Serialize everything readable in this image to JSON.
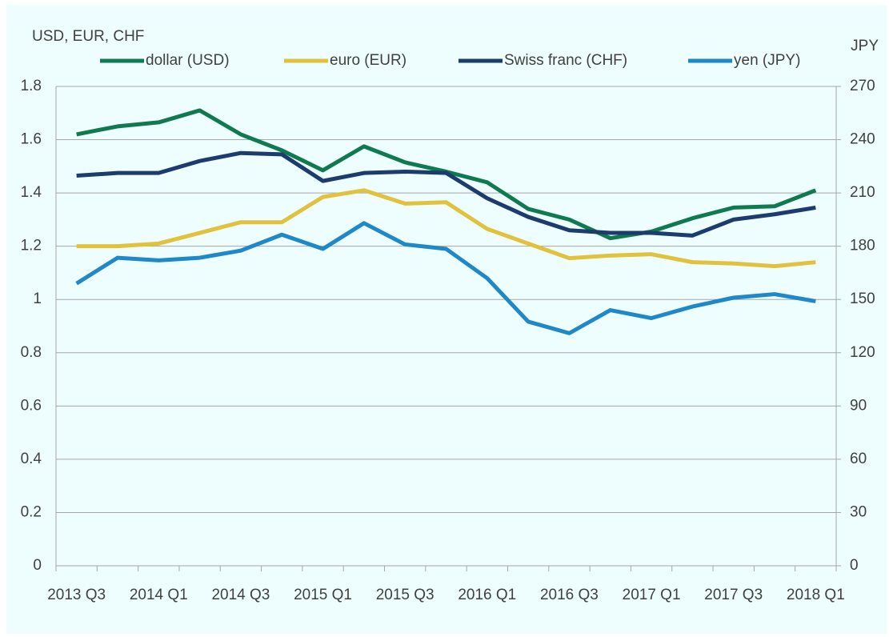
{
  "chart_data": {
    "type": "line",
    "y_axis_label": "USD, EUR, CHF",
    "y2_axis_label": "JPY",
    "categories": [
      "2013 Q3",
      null,
      "2014 Q1",
      null,
      "2014 Q3",
      null,
      "2015 Q1",
      null,
      "2015 Q3",
      null,
      "2016 Q1",
      null,
      "2016 Q3",
      null,
      "2017 Q1",
      null,
      "2017 Q3",
      null,
      "2018 Q1"
    ],
    "series": [
      {
        "name": "dollar (USD)",
        "color": "#0f7a50",
        "values": [
          1.62,
          1.65,
          1.665,
          1.71,
          1.62,
          1.56,
          1.485,
          1.575,
          1.515,
          1.48,
          1.44,
          1.34,
          1.3,
          1.23,
          1.255,
          1.305,
          1.345,
          1.35,
          1.41
        ]
      },
      {
        "name": "euro (EUR)",
        "color": "#e0c23c",
        "values": [
          1.2,
          1.2,
          1.21,
          1.25,
          1.29,
          1.29,
          1.385,
          1.41,
          1.36,
          1.365,
          1.265,
          1.21,
          1.155,
          1.165,
          1.17,
          1.14,
          1.135,
          1.125,
          1.14
        ]
      },
      {
        "name": "Swiss franc (CHF)",
        "color": "#1b3c6d",
        "values": [
          1.465,
          1.475,
          1.475,
          1.52,
          1.55,
          1.545,
          1.445,
          1.475,
          1.48,
          1.475,
          1.38,
          1.31,
          1.26,
          1.25,
          1.25,
          1.24,
          1.3,
          1.32,
          1.345
        ]
      },
      {
        "name": "yen (JPY)",
        "color": "#1f88c8",
        "axis": "y2",
        "values": [
          159,
          173.5,
          172,
          173.5,
          177.5,
          186.5,
          178.5,
          193,
          181,
          178.5,
          162,
          137.5,
          131,
          144,
          139.5,
          146,
          151,
          153,
          149
        ]
      }
    ],
    "ylim": [
      0,
      1.8
    ],
    "yticks": [
      0,
      0.2,
      0.4,
      0.6,
      0.8,
      1,
      1.2,
      1.4,
      1.6,
      1.8
    ],
    "y2lim": [
      0,
      270
    ],
    "y2ticks": [
      0,
      30,
      60,
      90,
      120,
      150,
      180,
      210,
      240,
      270
    ],
    "grid": true,
    "legend": "top"
  }
}
